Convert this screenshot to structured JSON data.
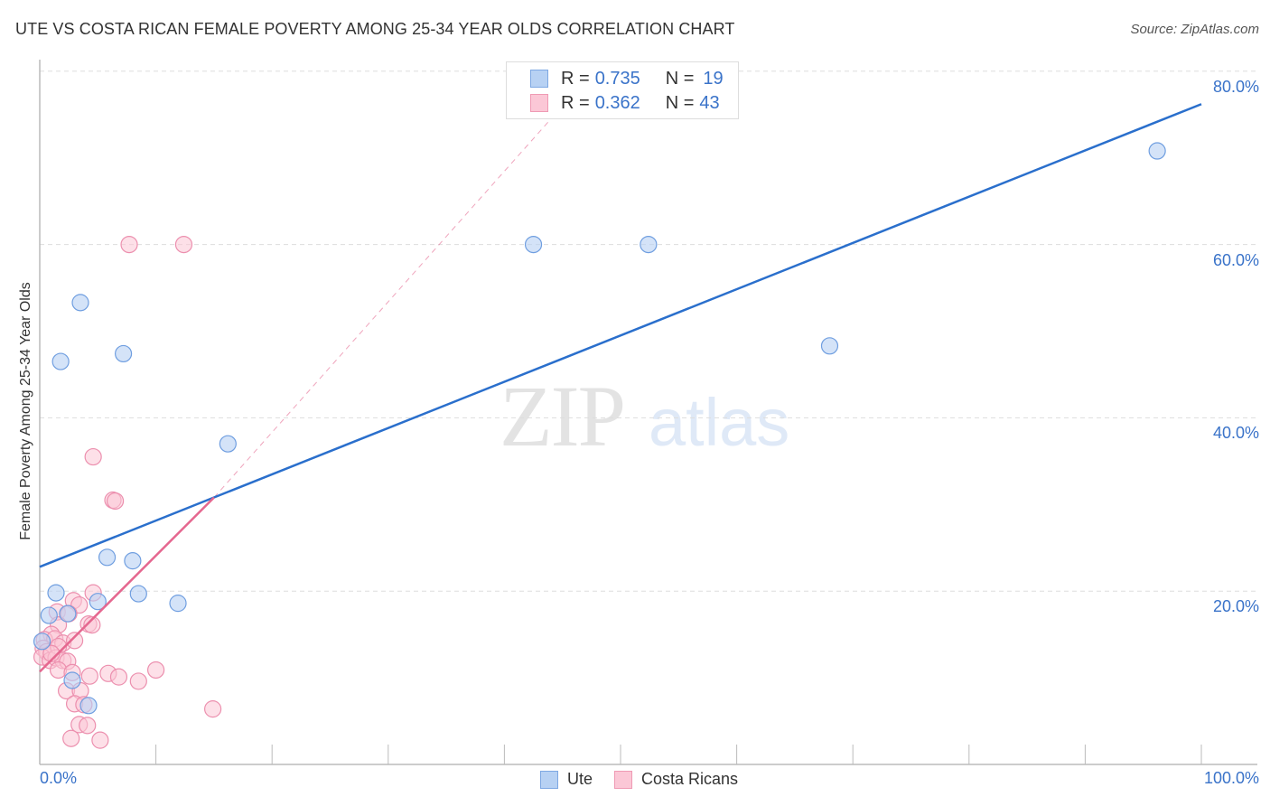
{
  "header": {
    "title": "UTE VS COSTA RICAN FEMALE POVERTY AMONG 25-34 YEAR OLDS CORRELATION CHART",
    "source": "Source: ZipAtlas.com"
  },
  "watermark": {
    "zip": "ZIP",
    "atlas": "atlas"
  },
  "legend": {
    "rows": [
      {
        "r_label": "R = ",
        "r_value": "0.735",
        "n_label": "N = ",
        "n_value": "19"
      },
      {
        "r_label": "R = ",
        "r_value": "0.362",
        "n_label": "N = ",
        "n_value": "43"
      }
    ],
    "bottom": [
      "Ute",
      "Costa Ricans"
    ]
  },
  "axes": {
    "ylabel": "Female Poverty Among 25-34 Year Olds",
    "yticks": [
      "80.0%",
      "60.0%",
      "40.0%",
      "20.0%"
    ],
    "xticks": [
      "0.0%",
      "100.0%"
    ]
  },
  "colors": {
    "ute_fill": "#b7d1f3",
    "ute_stroke": "#6f9ee0",
    "ute_line": "#2a6fcc",
    "cr_fill": "#fbc7d6",
    "cr_stroke": "#ec8fae",
    "cr_line": "#e5678f",
    "tick_label": "#3a73c9"
  },
  "chart_data": {
    "type": "scatter",
    "title": "UTE VS COSTA RICAN FEMALE POVERTY AMONG 25-34 YEAR OLDS CORRELATION CHART",
    "xlabel": "",
    "ylabel": "Female Poverty Among 25-34 Year Olds",
    "xlim": [
      0,
      100
    ],
    "ylim": [
      0,
      83
    ],
    "x_ticks": [
      "0.0%",
      "100.0%"
    ],
    "y_ticks": [
      "20.0%",
      "40.0%",
      "60.0%",
      "80.0%"
    ],
    "grid": "horizontal dashed",
    "legend_position": "top-center & bottom",
    "series": [
      {
        "name": "Ute",
        "R": 0.735,
        "N": 19,
        "points": [
          [
            96.2,
            70.8
          ],
          [
            52.4,
            60.0
          ],
          [
            42.5,
            60.0
          ],
          [
            68.0,
            48.3
          ],
          [
            3.5,
            53.3
          ],
          [
            1.8,
            46.5
          ],
          [
            7.2,
            47.4
          ],
          [
            16.2,
            37.0
          ],
          [
            5.8,
            23.9
          ],
          [
            8.0,
            23.5
          ],
          [
            1.4,
            19.8
          ],
          [
            8.5,
            19.7
          ],
          [
            11.9,
            18.6
          ],
          [
            5.0,
            18.8
          ],
          [
            0.8,
            17.2
          ],
          [
            2.4,
            17.4
          ],
          [
            0.2,
            14.2
          ],
          [
            2.8,
            9.7
          ],
          [
            4.2,
            6.8
          ]
        ],
        "trendline": {
          "x": [
            0,
            100
          ],
          "y": [
            22.8,
            76.2
          ]
        }
      },
      {
        "name": "Costa Ricans",
        "R": 0.362,
        "N": 43,
        "points": [
          [
            7.7,
            60.0
          ],
          [
            12.4,
            60.0
          ],
          [
            4.6,
            35.5
          ],
          [
            6.3,
            30.5
          ],
          [
            6.5,
            30.4
          ],
          [
            4.6,
            19.8
          ],
          [
            2.9,
            18.9
          ],
          [
            3.4,
            18.4
          ],
          [
            1.5,
            17.6
          ],
          [
            2.5,
            17.4
          ],
          [
            1.6,
            16.1
          ],
          [
            4.2,
            16.2
          ],
          [
            4.5,
            16.1
          ],
          [
            1.0,
            15.0
          ],
          [
            0.4,
            14.4
          ],
          [
            1.3,
            14.5
          ],
          [
            2.0,
            14.0
          ],
          [
            3.0,
            14.3
          ],
          [
            0.3,
            13.4
          ],
          [
            0.6,
            13.0
          ],
          [
            1.6,
            13.6
          ],
          [
            0.2,
            12.4
          ],
          [
            0.9,
            12.0
          ],
          [
            1.4,
            12.3
          ],
          [
            2.0,
            12.0
          ],
          [
            2.4,
            11.9
          ],
          [
            1.6,
            10.9
          ],
          [
            2.8,
            10.6
          ],
          [
            4.3,
            10.2
          ],
          [
            5.9,
            10.5
          ],
          [
            6.8,
            10.1
          ],
          [
            8.5,
            9.6
          ],
          [
            10.0,
            10.9
          ],
          [
            2.3,
            8.5
          ],
          [
            3.5,
            8.5
          ],
          [
            3.0,
            7.0
          ],
          [
            3.8,
            6.9
          ],
          [
            14.9,
            6.4
          ],
          [
            3.4,
            4.6
          ],
          [
            4.1,
            4.5
          ],
          [
            2.7,
            3.0
          ],
          [
            5.2,
            2.8
          ],
          [
            1.0,
            12.8
          ]
        ],
        "trendline": {
          "x": [
            0,
            15
          ],
          "y": [
            10.7,
            30.8
          ]
        },
        "trendline_extended_dashed": {
          "x": [
            15,
            47
          ],
          "y": [
            30.8,
            79.0
          ]
        }
      }
    ]
  }
}
